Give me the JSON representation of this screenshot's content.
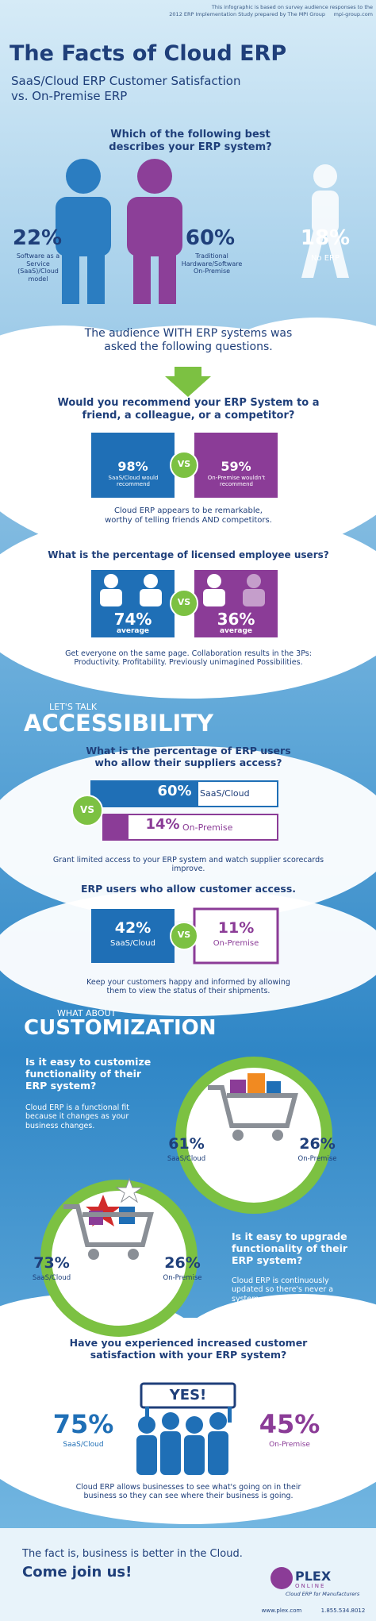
{
  "header": {
    "note_line1": "This infographic is based on survey audience responses to the",
    "note_line2": "2012 ERP Implementation Study prepared by The MPI Group",
    "source_site": "mpi-group.com",
    "title": "The Facts of Cloud ERP",
    "subtitle_line1": "SaaS/Cloud ERP Customer Satisfaction",
    "subtitle_line2": "vs. On-Premise ERP"
  },
  "erp_system": {
    "question": "Which of the following best describes your ERP system?",
    "options": [
      {
        "percent": "22%",
        "label": "Software as a Service (SaaS)/Cloud model"
      },
      {
        "percent": "60%",
        "label": "Traditional Hardware/Software On-Premise"
      },
      {
        "percent": "18%",
        "label": "No ERP"
      }
    ],
    "audience_note": "The audience WITH ERP systems was asked the following questions."
  },
  "recommend": {
    "question": "Would you recommend your ERP System to a friend, a colleague, or a competitor?",
    "vs": "VS",
    "cloud": {
      "percent": "98%",
      "label": "SaaS/Cloud would recommend"
    },
    "on_premise": {
      "percent": "59%",
      "label": "On-Premise wouldn't recommend"
    },
    "note": "Cloud ERP appears to be remarkable, worthy of telling friends AND competitors."
  },
  "licensed_users": {
    "question": "What is the percentage of licensed employee users?",
    "vs": "VS",
    "cloud": {
      "percent": "74%",
      "label": "average"
    },
    "on_premise": {
      "percent": "36%",
      "label": "average"
    },
    "note": "Get everyone on the same page. Collaboration results in the 3Ps: Productivity. Profitability. Previously unimagined Possibilities."
  },
  "accessibility": {
    "kicker": "LET'S TALK",
    "heading": "ACCESSIBILITY",
    "supplier": {
      "question": "What is the percentage of ERP users who allow their suppliers access?",
      "vs": "VS",
      "cloud": {
        "percent": "60%",
        "label": "SaaS/Cloud"
      },
      "on_premise": {
        "percent": "14%",
        "label": "On-Premise"
      },
      "note": "Grant limited access to your ERP system and watch supplier scorecards improve."
    },
    "customer": {
      "question": "ERP users who allow customer access.",
      "vs": "VS",
      "cloud": {
        "percent": "42%",
        "label": "SaaS/Cloud"
      },
      "on_premise": {
        "percent": "11%",
        "label": "On-Premise"
      },
      "note": "Keep your customers happy and informed by allowing them to view the status of their shipments."
    }
  },
  "customization": {
    "kicker": "WHAT ABOUT",
    "heading": "CUSTOMIZATION",
    "customize": {
      "question": "Is it easy to customize functionality of their ERP system?",
      "text": "Cloud ERP is a functional fit because it changes as your business changes.",
      "cloud": {
        "percent": "61%",
        "label": "SaaS/Cloud"
      },
      "on_premise": {
        "percent": "26%",
        "label": "On-Premise"
      }
    },
    "upgrade": {
      "question": "Is it easy to upgrade functionality of their ERP system?",
      "text": "Cloud ERP is continuously updated so there's never a system upgrade to disrupt your business.",
      "cloud": {
        "percent": "73%",
        "label": "SaaS/Cloud"
      },
      "on_premise": {
        "percent": "26%",
        "label": "On-Premise"
      }
    }
  },
  "satisfaction": {
    "question": "Have you experienced increased customer satisfaction with your ERP system?",
    "answer": "YES!",
    "cloud": {
      "percent": "75%",
      "label": "SaaS/Cloud"
    },
    "on_premise": {
      "percent": "45%",
      "label": "On-Premise"
    },
    "note": "Cloud ERP allows businesses to see what's going on in their business so they can see where their business is going."
  },
  "footer": {
    "tagline": "The fact is, business is better in the Cloud.",
    "call_to_action": "Come join us!",
    "logo": "PLEX",
    "logo_sub": "ONLINE",
    "logo_tagline": "Cloud ERP for Manufacturers",
    "website": "www.plex.com",
    "phone": "1.855.534.8012"
  }
}
